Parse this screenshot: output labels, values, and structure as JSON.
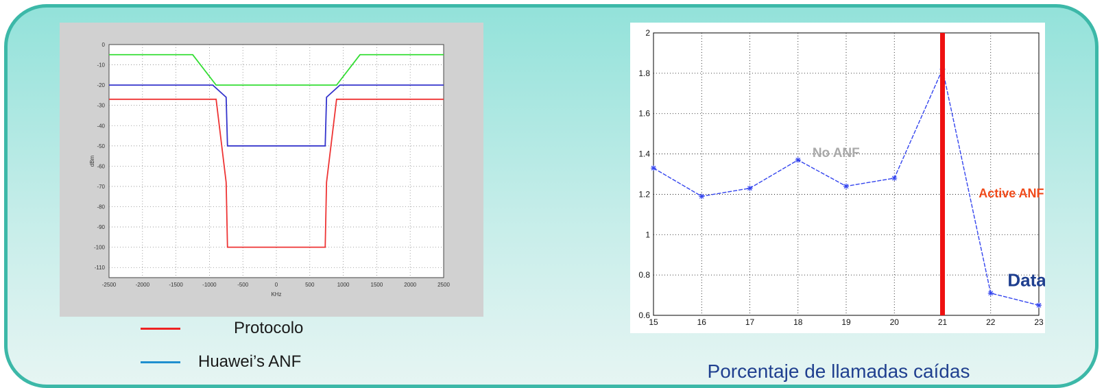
{
  "left_chart": {
    "chart_data": {
      "type": "line",
      "title": "",
      "xlabel": "KHz",
      "ylabel": "dBm",
      "xlim": [
        -2500,
        2500
      ],
      "ylim": [
        -115,
        0
      ],
      "x_ticks": [
        -2500,
        -2000,
        -1500,
        -1000,
        -500,
        0,
        500,
        1000,
        1500,
        2000,
        2500
      ],
      "y_ticks": [
        0,
        -10,
        -20,
        -30,
        -40,
        -50,
        -60,
        -70,
        -80,
        -90,
        -100,
        -110
      ],
      "grid": true,
      "series": [
        {
          "color": "#33dd33",
          "points": [
            [
              -2500,
              -5
            ],
            [
              -1250,
              -5
            ],
            [
              -900,
              -20
            ],
            [
              900,
              -20
            ],
            [
              1250,
              -5
            ],
            [
              2500,
              -5
            ]
          ]
        },
        {
          "color": "#3333cc",
          "points": [
            [
              -2500,
              -20
            ],
            [
              -950,
              -20
            ],
            [
              -750,
              -26
            ],
            [
              -730,
              -50
            ],
            [
              730,
              -50
            ],
            [
              750,
              -26
            ],
            [
              950,
              -20
            ],
            [
              2500,
              -20
            ]
          ]
        },
        {
          "color": "#ee3333",
          "points": [
            [
              -2500,
              -27
            ],
            [
              -900,
              -27
            ],
            [
              -750,
              -68
            ],
            [
              -730,
              -100
            ],
            [
              730,
              -100
            ],
            [
              750,
              -68
            ],
            [
              900,
              -27
            ],
            [
              2500,
              -27
            ]
          ]
        }
      ]
    }
  },
  "legend": [
    {
      "label": "Protocolo",
      "color": "#ee2222"
    },
    {
      "label": "Huawei’s ANF",
      "color": "#1f8fcf"
    }
  ],
  "right_chart": {
    "chart_data": {
      "type": "line",
      "title": "",
      "xlim": [
        15,
        23
      ],
      "ylim": [
        0.6,
        2
      ],
      "x_ticks": [
        15,
        16,
        17,
        18,
        19,
        20,
        21,
        22,
        23
      ],
      "y_ticks": [
        0.6,
        0.8,
        1,
        1.2,
        1.4,
        1.6,
        1.8,
        2
      ],
      "grid": true,
      "series": [
        {
          "color": "#3344ee",
          "x": [
            15,
            16,
            17,
            18,
            19,
            20,
            21,
            22,
            23
          ],
          "values": [
            1.33,
            1.19,
            1.23,
            1.37,
            1.24,
            1.28,
            1.82,
            0.71,
            0.65
          ]
        }
      ],
      "marker_x": 21,
      "marker_color": "#ee1111",
      "annotations": {
        "no_anf": "No ANF",
        "active_anf": "Active ANF",
        "data": "Data"
      }
    },
    "caption": "Porcentaje de llamadas caídas"
  }
}
